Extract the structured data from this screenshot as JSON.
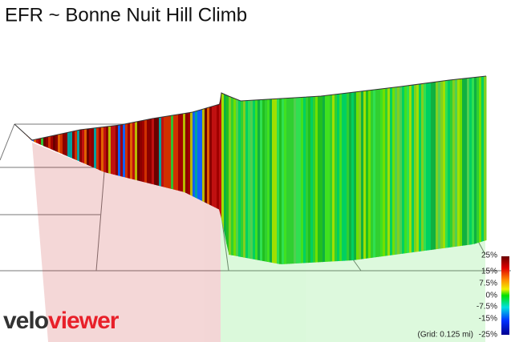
{
  "title": "EFR ~ Bonne Nuit Hill Climb",
  "legend": {
    "ticks": [
      "25%",
      "15%",
      "7.5%",
      "0%",
      "-7.5%",
      "-15%",
      "-25%"
    ]
  },
  "grid_note": "(Grid: 0.125 mi)",
  "logo": {
    "part1": "velo",
    "part2": "viewer"
  }
}
